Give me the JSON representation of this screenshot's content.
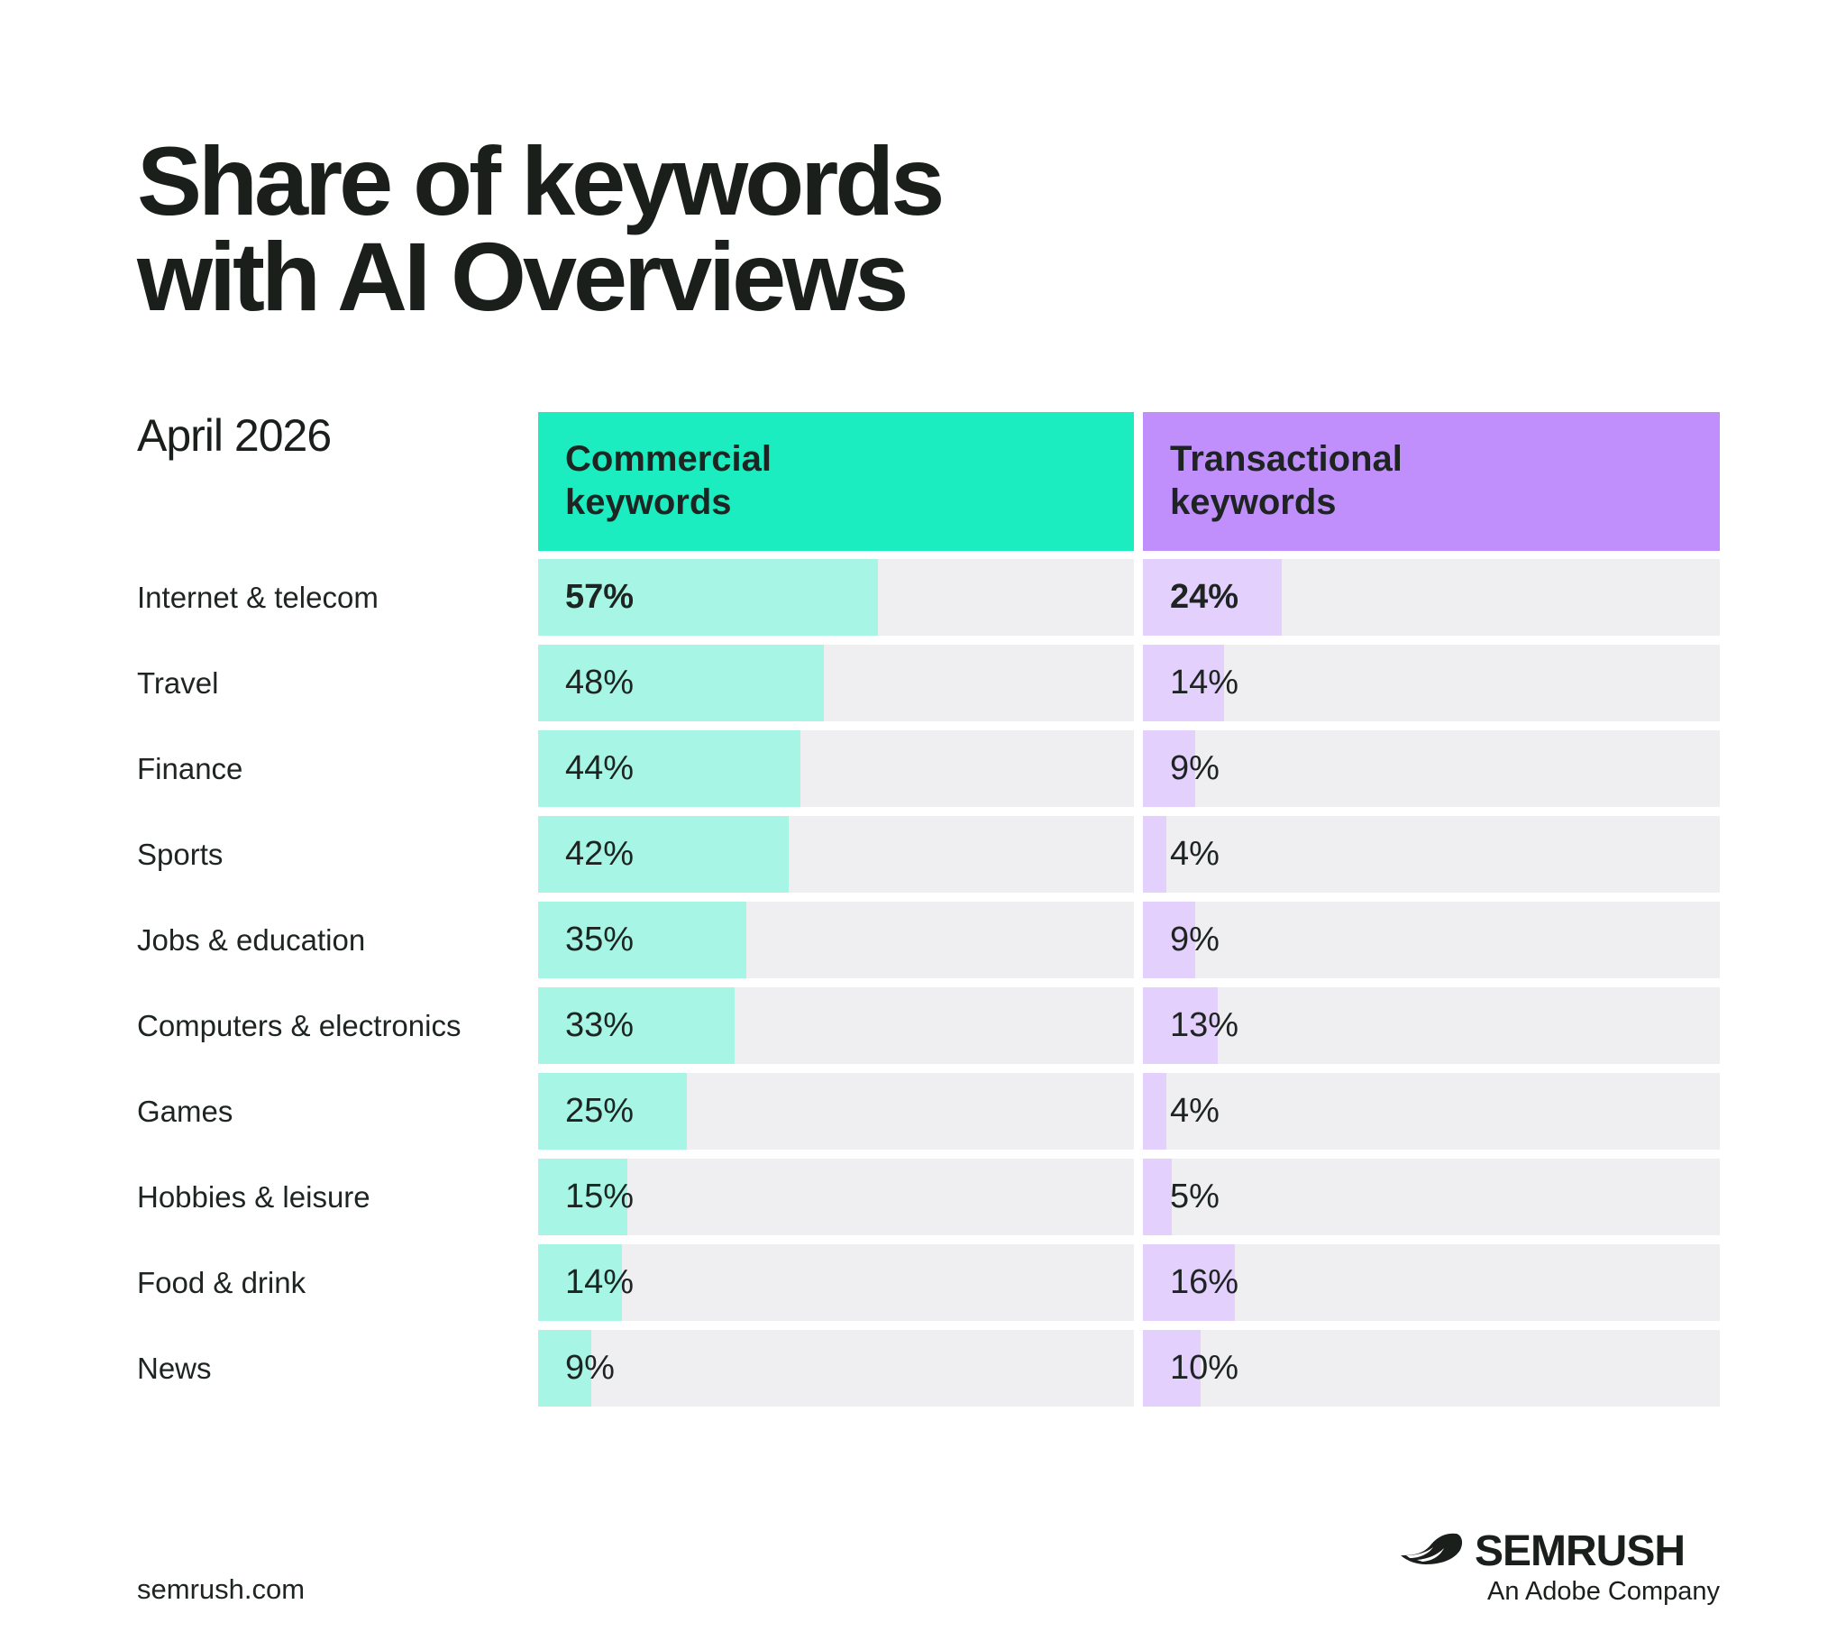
{
  "title_line1": "Share of keywords",
  "title_line2": "with AI Overviews",
  "date": "April 2026",
  "headers": {
    "commercial": [
      "Commercial",
      "keywords"
    ],
    "transactional": [
      "Transactional",
      "keywords"
    ]
  },
  "colors": {
    "commercial_header": "#1bedc1",
    "commercial_bar": "#a7f6e5",
    "transactional_header": "#c08ffc",
    "transactional_bar": "#e3d0fd",
    "track": "#efeff1"
  },
  "footer": {
    "url": "semrush.com",
    "brand": "SEMRUSH",
    "tagline": "An Adobe Company",
    "logo_icon": "semrush-flame-icon"
  },
  "chart_data": {
    "type": "bar",
    "title": "Share of keywords with AI Overviews",
    "subtitle": "April 2026",
    "unit": "%",
    "ylim": [
      0,
      100
    ],
    "categories": [
      "Internet & telecom",
      "Travel",
      "Finance",
      "Sports",
      "Jobs & education",
      "Computers & electronics",
      "Games",
      "Hobbies & leisure",
      "Food & drink",
      "News"
    ],
    "series": [
      {
        "name": "Commercial keywords",
        "values": [
          57,
          48,
          44,
          42,
          35,
          33,
          25,
          15,
          14,
          9
        ]
      },
      {
        "name": "Transactional keywords",
        "values": [
          24,
          14,
          9,
          4,
          9,
          13,
          4,
          5,
          16,
          10
        ]
      }
    ]
  }
}
